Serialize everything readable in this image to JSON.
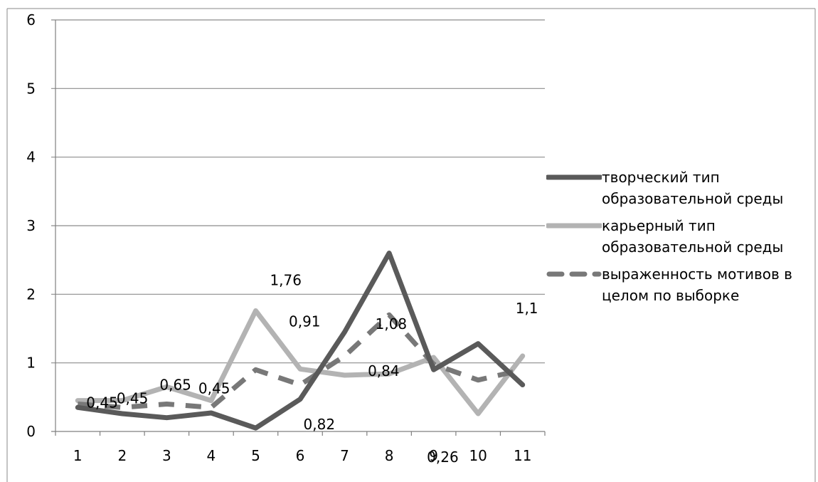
{
  "chart_data": {
    "type": "line",
    "categories": [
      "1",
      "2",
      "3",
      "4",
      "5",
      "6",
      "7",
      "8",
      "9",
      "10",
      "11"
    ],
    "ylim": [
      0,
      6
    ],
    "yticks": [
      "0",
      "1",
      "2",
      "3",
      "4",
      "5",
      "6"
    ],
    "grid": "horizontal",
    "legend_position": "right",
    "series": [
      {
        "name": "творческий тип образовательной среды",
        "color": "#5a5a5a",
        "style": "solid",
        "values": [
          0.35,
          0.26,
          0.2,
          0.27,
          0.05,
          0.47,
          1.45,
          2.6,
          0.9,
          1.28,
          0.68
        ],
        "labels": []
      },
      {
        "name": "карьерный тип образовательной среды",
        "color": "#b3b3b3",
        "style": "solid",
        "values": [
          0.45,
          0.45,
          0.65,
          0.45,
          1.76,
          0.91,
          0.82,
          0.84,
          1.08,
          0.26,
          1.1
        ],
        "labels": [
          "0,45",
          "0,45",
          "0,65",
          "0,45",
          "1,76",
          "0,91",
          "0,82",
          "0,84",
          "1,08",
          "0,26",
          "1,1"
        ]
      },
      {
        "name": "выраженность мотивов в целом по выборке",
        "color": "#787878",
        "style": "dashed",
        "values": [
          0.4,
          0.35,
          0.4,
          0.35,
          0.9,
          0.68,
          1.1,
          1.7,
          0.98,
          0.75,
          0.9
        ],
        "labels": []
      }
    ]
  }
}
